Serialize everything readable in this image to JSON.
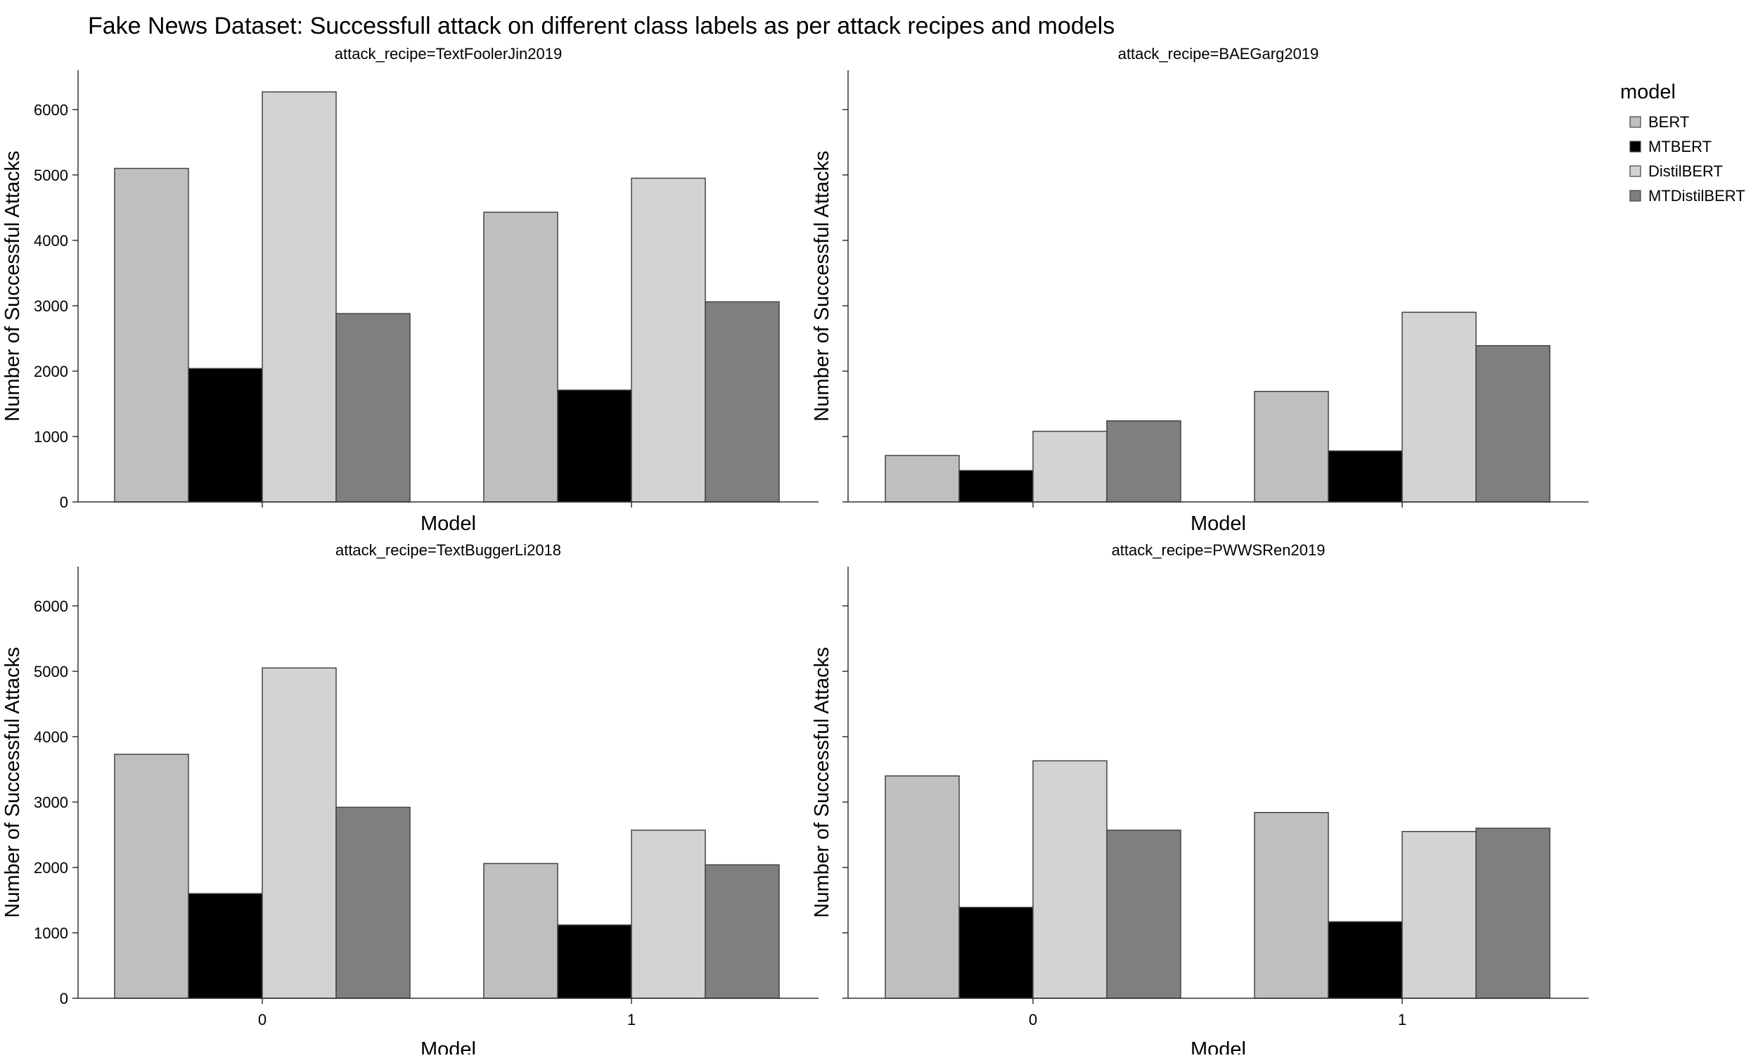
{
  "chart_data": {
    "type": "bar",
    "title": "Fake News Dataset: Successfull attack on different class labels as per attack recipes and models",
    "xlabel": "Model",
    "ylabel": "Number of Successful Attacks",
    "ylim": [
      0,
      6600
    ],
    "yticks": [
      0,
      1000,
      2000,
      3000,
      4000,
      5000,
      6000
    ],
    "categories": [
      "0",
      "1"
    ],
    "grid": false,
    "legend": {
      "title": "model",
      "placement": "right-top",
      "entries": [
        "BERT",
        "MTBERT",
        "DistilBERT",
        "MTDistilBERT"
      ]
    },
    "colors": {
      "BERT": "#bfbfbf",
      "MTBERT": "#000000",
      "DistilBERT": "#d3d3d3",
      "MTDistilBERT": "#7f7f7f"
    },
    "facets": [
      {
        "title": "attack_recipe=TextFoolerJin2019",
        "series": [
          {
            "name": "BERT",
            "values": [
              5100,
              4430
            ]
          },
          {
            "name": "MTBERT",
            "values": [
              2040,
              1710
            ]
          },
          {
            "name": "DistilBERT",
            "values": [
              6270,
              4950
            ]
          },
          {
            "name": "MTDistilBERT",
            "values": [
              2880,
              3060
            ]
          }
        ]
      },
      {
        "title": "attack_recipe=BAEGarg2019",
        "series": [
          {
            "name": "BERT",
            "values": [
              710,
              1690
            ]
          },
          {
            "name": "MTBERT",
            "values": [
              480,
              780
            ]
          },
          {
            "name": "DistilBERT",
            "values": [
              1080,
              2900
            ]
          },
          {
            "name": "MTDistilBERT",
            "values": [
              1240,
              2390
            ]
          }
        ]
      },
      {
        "title": "attack_recipe=TextBuggerLi2018",
        "series": [
          {
            "name": "BERT",
            "values": [
              3730,
              2060
            ]
          },
          {
            "name": "MTBERT",
            "values": [
              1600,
              1120
            ]
          },
          {
            "name": "DistilBERT",
            "values": [
              5050,
              2570
            ]
          },
          {
            "name": "MTDistilBERT",
            "values": [
              2920,
              2040
            ]
          }
        ]
      },
      {
        "title": "attack_recipe=PWWSRen2019",
        "series": [
          {
            "name": "BERT",
            "values": [
              3400,
              2840
            ]
          },
          {
            "name": "MTBERT",
            "values": [
              1390,
              1170
            ]
          },
          {
            "name": "DistilBERT",
            "values": [
              3630,
              2550
            ]
          },
          {
            "name": "MTDistilBERT",
            "values": [
              2570,
              2600
            ]
          }
        ]
      }
    ]
  }
}
